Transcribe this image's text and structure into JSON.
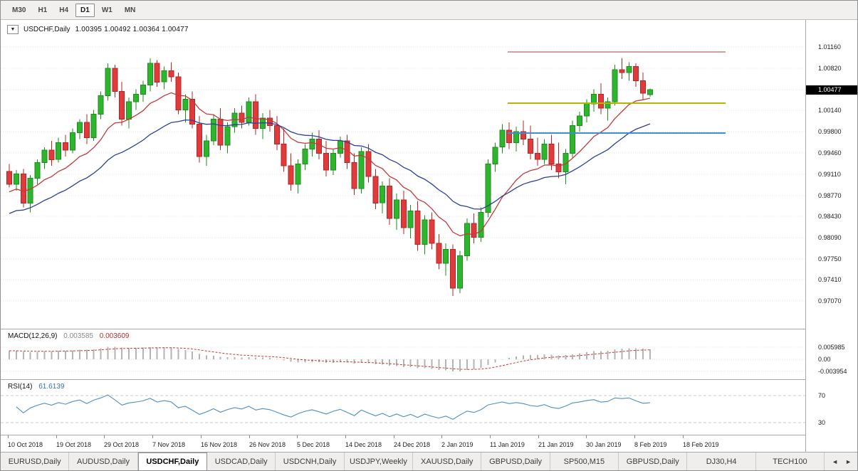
{
  "toolbar": {
    "timeframes": [
      "M30",
      "H1",
      "H4",
      "D1",
      "W1",
      "MN"
    ],
    "active_timeframe": "D1"
  },
  "chart": {
    "collapse_icon": "▼",
    "title": "USDCHF,Daily",
    "ohlc_text": "1.00395 1.00492 1.00364 1.00477"
  },
  "chart_data": {
    "type": "candlestick",
    "symbol": "USDCHF",
    "timeframe": "Daily",
    "last_ohlc": {
      "open": 1.00395,
      "high": 1.00492,
      "low": 1.00364,
      "close": 1.00477
    },
    "price_box": {
      "value": "1.00477",
      "bg": "#000000",
      "fg": "#ffffff"
    },
    "price_scale": {
      "top": 1.016,
      "bottom": 0.96624
    },
    "y_axis_ticks": [
      "1.01160",
      "1.00820",
      "1.00140",
      "0.99800",
      "0.99460",
      "0.99110",
      "0.98770",
      "0.98430",
      "0.98090",
      "0.97750",
      "0.97410",
      "0.97070"
    ],
    "hidden_grid_tick": "1.00480",
    "x_labels": [
      "10 Oct 2018",
      "19 Oct 2018",
      "29 Oct 2018",
      "7 Nov 2018",
      "16 Nov 2018",
      "26 Nov 2018",
      "5 Dec 2018",
      "14 Dec 2018",
      "24 Dec 2018",
      "2 Jan 2019",
      "11 Jan 2019",
      "21 Jan 2019",
      "30 Jan 2019",
      "8 Feb 2019",
      "18 Feb 2019"
    ],
    "colors": {
      "bull": "#2db52d",
      "bull_stroke": "#1e8e1e",
      "bear": "#e03a3a",
      "bear_stroke": "#b02828",
      "grid": "#e2e2e2",
      "level_dash": "#c8c8c8",
      "ma_fast": "#c13b3b",
      "ma_slow": "#2e3f96",
      "macd_hist": "#b4b4b4",
      "macd_signal": "#c13b3b",
      "rsi_line": "#4f8fc0"
    },
    "moving_averages": [
      {
        "type": "ema",
        "period": 12,
        "color": "#c13b3b"
      },
      {
        "type": "ema",
        "period": 26,
        "color": "#2e3f96"
      }
    ],
    "hlines": [
      {
        "price": 1.0108,
        "color": "#a04040",
        "width": 1
      },
      {
        "price": 1.0026,
        "color": "#b2b800",
        "width": 2
      },
      {
        "price": 0.9978,
        "color": "#3d8fd4",
        "width": 2
      }
    ],
    "indicators": {
      "macd": {
        "name": "MACD(12,26,9)",
        "value_main": "0.003585",
        "value_signal": "0.003609",
        "axis_labels": [
          "0.005985",
          "0.00",
          "-0.003954"
        ],
        "params": {
          "fast": 12,
          "slow": 26,
          "signal": 9
        }
      },
      "rsi": {
        "name": "RSI(14)",
        "value": "61.6139",
        "period": 14,
        "levels": [
          "70",
          "30"
        ]
      }
    },
    "candles": [
      [
        0.9916,
        0.9928,
        0.989,
        0.9895
      ],
      [
        0.9895,
        0.9918,
        0.9885,
        0.9912
      ],
      [
        0.9912,
        0.992,
        0.9858,
        0.9865
      ],
      [
        0.9865,
        0.991,
        0.985,
        0.9905
      ],
      [
        0.9905,
        0.9935,
        0.9895,
        0.993
      ],
      [
        0.993,
        0.9955,
        0.992,
        0.995
      ],
      [
        0.995,
        0.9965,
        0.9925,
        0.9935
      ],
      [
        0.9935,
        0.997,
        0.993,
        0.9962
      ],
      [
        0.9962,
        0.9975,
        0.994,
        0.995
      ],
      [
        0.995,
        0.9985,
        0.9945,
        0.9978
      ],
      [
        0.9978,
        1.0,
        0.9968,
        0.9995
      ],
      [
        0.9995,
        1.0008,
        0.996,
        0.997
      ],
      [
        0.997,
        1.0015,
        0.9965,
        1.0008
      ],
      [
        1.0008,
        1.0045,
        1.0,
        1.0038
      ],
      [
        1.0038,
        1.009,
        1.003,
        1.0082
      ],
      [
        1.0082,
        1.0088,
        1.0035,
        1.0045
      ],
      [
        1.0045,
        1.006,
        0.999,
        1.0
      ],
      [
        1.0,
        1.0035,
        0.9985,
        1.0028
      ],
      [
        1.0028,
        1.0048,
        1.0015,
        1.004
      ],
      [
        1.004,
        1.0062,
        1.0028,
        1.0055
      ],
      [
        1.0055,
        1.0098,
        1.0045,
        1.009
      ],
      [
        1.009,
        1.0095,
        1.0052,
        1.006
      ],
      [
        1.006,
        1.0085,
        1.0048,
        1.0078
      ],
      [
        1.0078,
        1.0092,
        1.006,
        1.0068
      ],
      [
        1.0068,
        1.0075,
        1.0008,
        1.0015
      ],
      [
        1.0015,
        1.004,
        0.9995,
        1.0032
      ],
      [
        1.0032,
        1.0045,
        0.9985,
        0.9992
      ],
      [
        0.9992,
        1.0005,
        0.993,
        0.994
      ],
      [
        0.994,
        0.9975,
        0.9925,
        0.9965
      ],
      [
        0.9965,
        1.0008,
        0.9958,
        1.0
      ],
      [
        1.0,
        1.0018,
        0.995,
        0.9958
      ],
      [
        0.9958,
        0.9995,
        0.9945,
        0.9988
      ],
      [
        0.9988,
        1.0018,
        0.9978,
        1.001
      ],
      [
        1.001,
        1.0022,
        0.9985,
        0.9995
      ],
      [
        0.9995,
        1.0035,
        0.999,
        1.0028
      ],
      [
        1.0028,
        1.004,
        0.9975,
        0.9985
      ],
      [
        0.9985,
        1.001,
        0.9968,
        1.0002
      ],
      [
        1.0002,
        1.0015,
        0.998,
        0.999
      ],
      [
        0.999,
        1.0005,
        0.995,
        0.996
      ],
      [
        0.996,
        0.9985,
        0.9915,
        0.9925
      ],
      [
        0.9925,
        0.9945,
        0.9885,
        0.9895
      ],
      [
        0.9895,
        0.9935,
        0.988,
        0.9928
      ],
      [
        0.9928,
        0.996,
        0.9918,
        0.9952
      ],
      [
        0.9952,
        0.9978,
        0.994,
        0.9968
      ],
      [
        0.9968,
        0.9982,
        0.9935,
        0.9945
      ],
      [
        0.9945,
        0.9965,
        0.9908,
        0.9918
      ],
      [
        0.9918,
        0.9952,
        0.991,
        0.9945
      ],
      [
        0.9945,
        0.9972,
        0.9938,
        0.9965
      ],
      [
        0.9965,
        0.9975,
        0.992,
        0.993
      ],
      [
        0.993,
        0.9945,
        0.9878,
        0.9888
      ],
      [
        0.9888,
        0.9955,
        0.988,
        0.9948
      ],
      [
        0.9948,
        0.996,
        0.9898,
        0.9908
      ],
      [
        0.9908,
        0.992,
        0.9855,
        0.9865
      ],
      [
        0.9865,
        0.99,
        0.9848,
        0.9892
      ],
      [
        0.9892,
        0.9905,
        0.983,
        0.984
      ],
      [
        0.984,
        0.988,
        0.9822,
        0.987
      ],
      [
        0.987,
        0.9885,
        0.9815,
        0.9825
      ],
      [
        0.9825,
        0.9862,
        0.9808,
        0.9852
      ],
      [
        0.9852,
        0.9868,
        0.9788,
        0.9798
      ],
      [
        0.9798,
        0.9845,
        0.9782,
        0.9838
      ],
      [
        0.9838,
        0.985,
        0.979,
        0.98
      ],
      [
        0.98,
        0.9815,
        0.9758,
        0.9768
      ],
      [
        0.9768,
        0.98,
        0.9748,
        0.979
      ],
      [
        0.979,
        0.9798,
        0.9715,
        0.9728
      ],
      [
        0.9728,
        0.9788,
        0.972,
        0.978
      ],
      [
        0.978,
        0.984,
        0.9772,
        0.9832
      ],
      [
        0.9832,
        0.9848,
        0.98,
        0.981
      ],
      [
        0.981,
        0.9858,
        0.9802,
        0.985
      ],
      [
        0.985,
        0.9935,
        0.9842,
        0.9928
      ],
      [
        0.9928,
        0.9962,
        0.9915,
        0.9955
      ],
      [
        0.9955,
        0.9992,
        0.9945,
        0.9982
      ],
      [
        0.9982,
        0.9995,
        0.9952,
        0.9962
      ],
      [
        0.9962,
        0.9988,
        0.9948,
        0.998
      ],
      [
        0.998,
        0.9998,
        0.9958,
        0.9968
      ],
      [
        0.9968,
        0.999,
        0.9935,
        0.9945
      ],
      [
        0.9945,
        0.997,
        0.9925,
        0.9935
      ],
      [
        0.9935,
        0.9968,
        0.9928,
        0.996
      ],
      [
        0.996,
        0.9975,
        0.9918,
        0.9928
      ],
      [
        0.9928,
        0.9962,
        0.9905,
        0.9915
      ],
      [
        0.9915,
        0.9952,
        0.9895,
        0.9945
      ],
      [
        0.9945,
        0.9998,
        0.9938,
        0.999
      ],
      [
        0.999,
        1.0012,
        0.998,
        1.0005
      ],
      [
        1.0005,
        1.0032,
        0.9995,
        1.0025
      ],
      [
        1.0025,
        1.0048,
        1.0012,
        1.004
      ],
      [
        1.004,
        1.0058,
        1.0008,
        1.0018
      ],
      [
        1.0018,
        1.0035,
        0.9998,
        1.0028
      ],
      [
        1.0028,
        1.0088,
        1.0022,
        1.008
      ],
      [
        1.008,
        1.0098,
        1.0065,
        1.0075
      ],
      [
        1.0075,
        1.0092,
        1.0062,
        1.0085
      ],
      [
        1.0085,
        1.009,
        1.0052,
        1.0062
      ],
      [
        1.0062,
        1.0075,
        1.0032,
        1.0042
      ],
      [
        1.00395,
        1.00492,
        1.00364,
        1.00477
      ]
    ]
  },
  "tabs": {
    "items": [
      "EURUSD,Daily",
      "AUDUSD,Daily",
      "USDCHF,Daily",
      "USDCAD,Daily",
      "USDCNH,Daily",
      "USDJPY,Weekly",
      "XAUUSD,Daily",
      "GBPUSD,Daily",
      "SP500,M15",
      "GBPUSD,Daily",
      "DJ30,H4",
      "TECH100"
    ],
    "active_index": 2,
    "scroll_left_icon": "◄",
    "scroll_right_icon": "►"
  }
}
